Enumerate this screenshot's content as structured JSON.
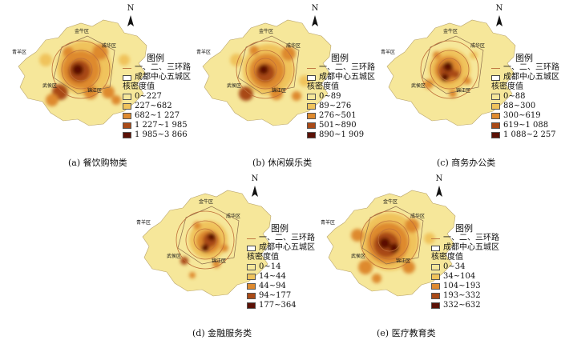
{
  "common": {
    "legend_title": "图例",
    "ring_road_label": "一、二、三环路",
    "district_box_label": "成都中心五城区",
    "density_title": "核密度值",
    "north_label": "N",
    "districts": [
      "金牛区",
      "成华区",
      "青羊区",
      "武侯区",
      "锦江区"
    ],
    "colors": [
      "#f6e79a",
      "#f0c35b",
      "#de8a2f",
      "#a94a17",
      "#5b1106"
    ]
  },
  "panels": [
    {
      "caption": "(a) 餐饮购物类",
      "classes": [
        "0~227",
        "227~682",
        "682~1 227",
        "1 227~1 985",
        "1 985~3 866"
      ]
    },
    {
      "caption": "(b) 休闲娱乐类",
      "classes": [
        "0~89",
        "89~276",
        "276~501",
        "501~890",
        "890~1 909"
      ]
    },
    {
      "caption": "(c) 商务办公类",
      "classes": [
        "0~88",
        "88~300",
        "300~619",
        "619~1 088",
        "1 088~2 257"
      ]
    },
    {
      "caption": "(d) 金融服务类",
      "classes": [
        "0~14",
        "14~44",
        "44~94",
        "94~177",
        "177~364"
      ]
    },
    {
      "caption": "(e) 医疗教育类",
      "classes": [
        "0~34",
        "34~104",
        "104~193",
        "193~332",
        "332~632"
      ]
    }
  ]
}
